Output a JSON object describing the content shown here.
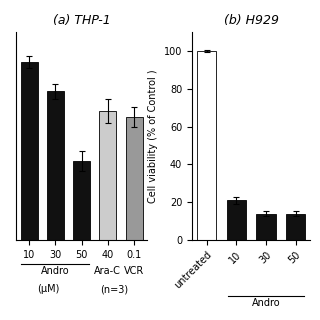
{
  "chart_data": [
    {
      "type": "bar",
      "title": "(a) THP-1",
      "categories": [
        "10",
        "30",
        "50",
        "40",
        "0.1"
      ],
      "values": [
        90,
        75,
        40,
        65,
        62
      ],
      "errors": [
        3,
        4,
        5,
        6,
        5
      ],
      "colors": [
        "#111111",
        "#111111",
        "#111111",
        "#cccccc",
        "#999999"
      ],
      "ylim": [
        0,
        105
      ],
      "yticks": [],
      "tick_labels": "x",
      "groups": [
        {
          "label": "Andro",
          "start": 0,
          "count": 3
        },
        {
          "label": "Ara-C",
          "start": 3,
          "count": 1
        },
        {
          "label": "VCR",
          "start": 4,
          "count": 1
        }
      ],
      "annotations": [
        "(μM)",
        "(n=3)"
      ]
    },
    {
      "type": "bar",
      "title": "(b) H929",
      "y_label": "Cell viability (% of Control )",
      "categories": [
        "untreated",
        "10",
        "30",
        "50"
      ],
      "values": [
        100,
        21,
        14,
        14
      ],
      "errors": [
        0.5,
        2,
        1.5,
        1.5
      ],
      "colors": [
        "#ffffff",
        "#111111",
        "#111111",
        "#111111"
      ],
      "ylim": [
        0,
        110
      ],
      "yticks": [
        0,
        20,
        40,
        60,
        80,
        100
      ],
      "groups": [
        {
          "label": "Andro",
          "start": 1,
          "count": 3
        }
      ]
    }
  ]
}
